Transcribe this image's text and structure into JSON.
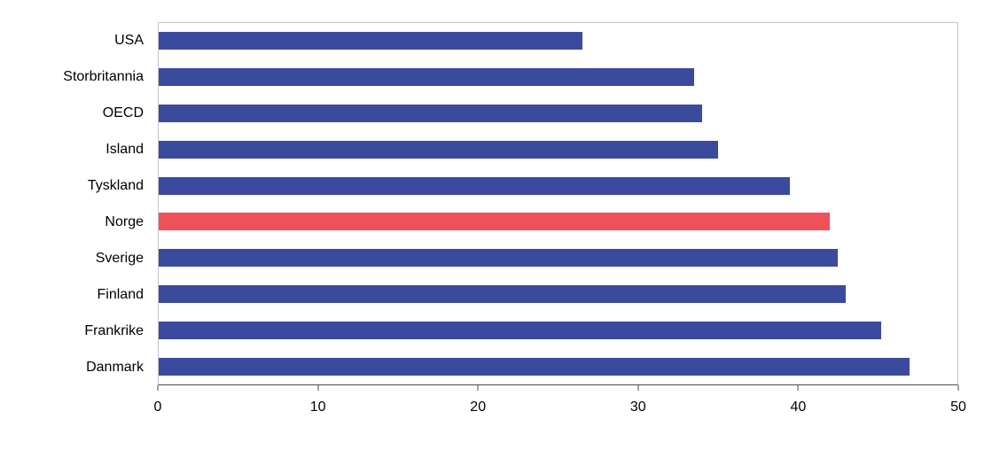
{
  "chart_data": {
    "type": "bar",
    "orientation": "horizontal",
    "title": "",
    "xlabel": "",
    "ylabel": "",
    "categories": [
      "USA",
      "Storbritannia",
      "OECD",
      "Island",
      "Tyskland",
      "Norge",
      "Sverige",
      "Finland",
      "Frankrike",
      "Danmark"
    ],
    "values": [
      26.5,
      33.5,
      34,
      35,
      39.5,
      42,
      42.5,
      43,
      45.2,
      47
    ],
    "xlim": [
      0,
      50
    ],
    "xticks": [
      0,
      10,
      20,
      30,
      40,
      50
    ],
    "grid": false,
    "legend": "none",
    "bar_color": "#3a4b9e",
    "highlight_category": "Norge",
    "highlight_color": "#ef5158"
  }
}
